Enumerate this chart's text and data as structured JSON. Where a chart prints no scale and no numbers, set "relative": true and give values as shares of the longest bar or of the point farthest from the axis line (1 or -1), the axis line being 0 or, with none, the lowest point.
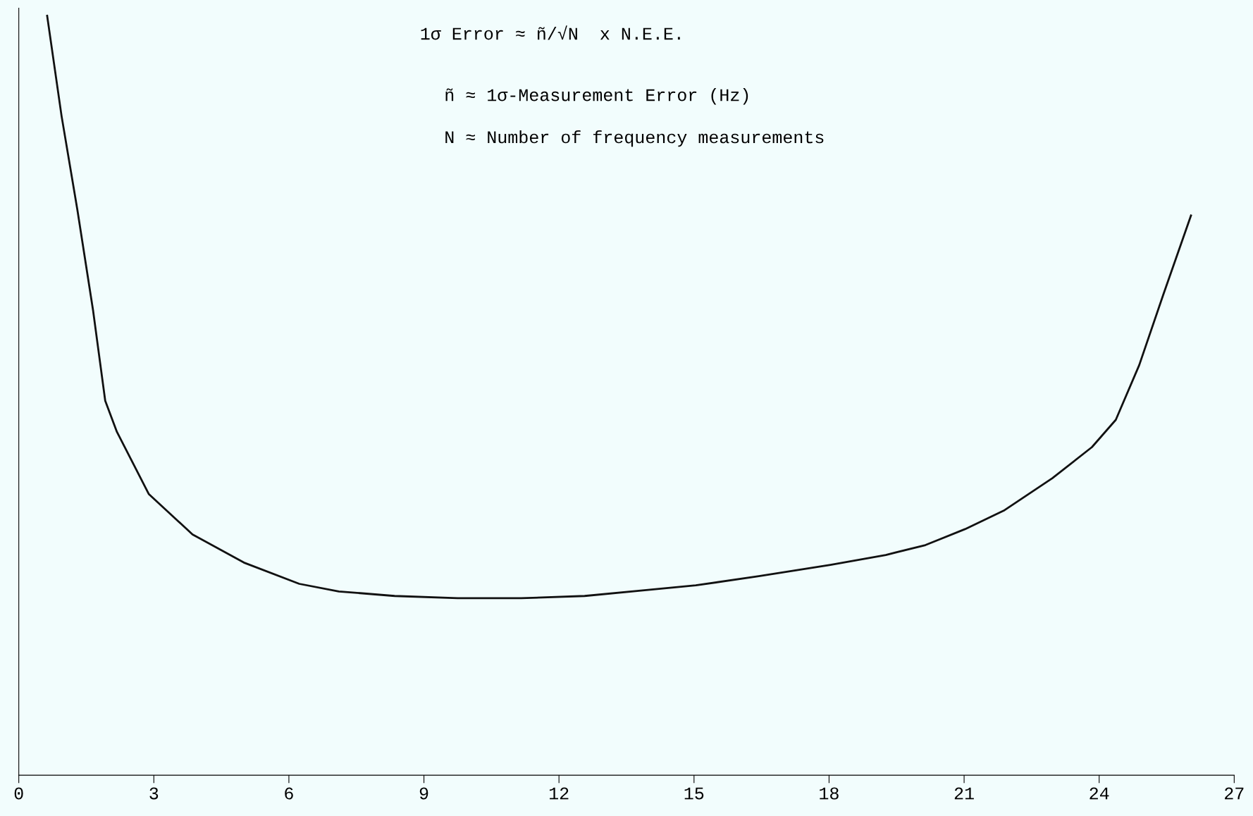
{
  "chart_data": {
    "type": "line",
    "relative": true,
    "x": [
      0.63,
      0.95,
      1.3,
      1.65,
      1.92,
      2.18,
      2.89,
      3.86,
      5.0,
      6.23,
      7.11,
      8.35,
      9.75,
      11.16,
      12.57,
      13.98,
      15.04,
      16.44,
      18.03,
      19.26,
      20.14,
      21.02,
      21.9,
      22.96,
      23.84,
      24.37,
      24.89,
      25.42,
      26.04
    ],
    "series": [
      {
        "color": "#111111",
        "values": [
          1.0,
          0.868,
          0.745,
          0.612,
          0.493,
          0.452,
          0.37,
          0.317,
          0.28,
          0.252,
          0.242,
          0.236,
          0.233,
          0.233,
          0.236,
          0.244,
          0.25,
          0.262,
          0.277,
          0.29,
          0.303,
          0.324,
          0.349,
          0.391,
          0.432,
          0.468,
          0.54,
          0.632,
          0.737
        ]
      }
    ],
    "xlim": [
      0,
      27
    ],
    "xticks": [
      0,
      3,
      6,
      9,
      12,
      15,
      18,
      21,
      24,
      27
    ],
    "annotations": [
      "1σ Error ≈ ñ/√N  x N.E.E.",
      "ñ ≈ 1σ-Measurement Error (Hz)",
      "N ≈ Number of frequency measurements"
    ],
    "grid": false,
    "legend": false,
    "marker": "none",
    "line_style": "solid"
  }
}
